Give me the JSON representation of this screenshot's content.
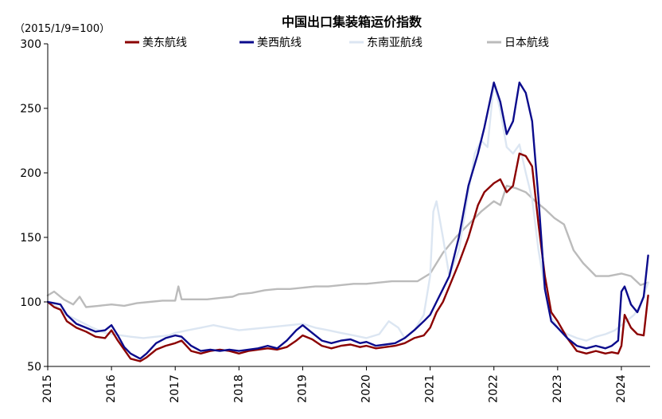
{
  "chart_data": {
    "type": "line",
    "title": "中国出口集装箱运价指数",
    "unit_label": "（2015/1/9=100）",
    "xlabel": "",
    "ylabel": "",
    "xlim": [
      2015,
      2024.45
    ],
    "ylim": [
      50,
      300
    ],
    "yticks": [
      50,
      100,
      150,
      200,
      250,
      300
    ],
    "xticks": [
      "2015",
      "2016",
      "2017",
      "2018",
      "2019",
      "2020",
      "2021",
      "2022",
      "2023",
      "2024"
    ],
    "legend_position": "top",
    "series": [
      {
        "name": "美东航线",
        "color": "#8B0000",
        "x": [
          2015.0,
          2015.1,
          2015.2,
          2015.3,
          2015.45,
          2015.6,
          2015.75,
          2015.9,
          2016.0,
          2016.1,
          2016.2,
          2016.3,
          2016.45,
          2016.55,
          2016.7,
          2016.85,
          2017.0,
          2017.1,
          2017.25,
          2017.4,
          2017.55,
          2017.7,
          2017.85,
          2018.0,
          2018.15,
          2018.3,
          2018.45,
          2018.6,
          2018.75,
          2018.9,
          2019.0,
          2019.15,
          2019.3,
          2019.45,
          2019.6,
          2019.75,
          2019.9,
          2020.0,
          2020.15,
          2020.3,
          2020.45,
          2020.6,
          2020.75,
          2020.9,
          2021.0,
          2021.1,
          2021.2,
          2021.3,
          2021.45,
          2021.6,
          2021.75,
          2021.85,
          2022.0,
          2022.1,
          2022.2,
          2022.3,
          2022.4,
          2022.5,
          2022.6,
          2022.7,
          2022.8,
          2022.9,
          2023.0,
          2023.15,
          2023.3,
          2023.45,
          2023.6,
          2023.75,
          2023.85,
          2023.95,
          2024.0,
          2024.05,
          2024.15,
          2024.25,
          2024.35,
          2024.42
        ],
        "values": [
          100,
          96,
          94,
          85,
          80,
          77,
          73,
          72,
          78,
          70,
          63,
          56,
          54,
          57,
          63,
          66,
          68,
          70,
          62,
          60,
          62,
          63,
          62,
          60,
          62,
          63,
          64,
          63,
          65,
          70,
          74,
          71,
          66,
          64,
          66,
          67,
          65,
          66,
          64,
          65,
          66,
          68,
          72,
          74,
          80,
          92,
          100,
          112,
          130,
          150,
          175,
          185,
          192,
          195,
          185,
          190,
          215,
          213,
          205,
          160,
          120,
          92,
          85,
          72,
          62,
          60,
          62,
          60,
          61,
          60,
          66,
          90,
          80,
          75,
          74,
          105
        ]
      },
      {
        "name": "美西航线",
        "color": "#0B0B8C",
        "x": [
          2015.0,
          2015.1,
          2015.2,
          2015.3,
          2015.45,
          2015.6,
          2015.75,
          2015.9,
          2016.0,
          2016.1,
          2016.2,
          2016.3,
          2016.45,
          2016.55,
          2016.7,
          2016.85,
          2017.0,
          2017.1,
          2017.25,
          2017.4,
          2017.55,
          2017.7,
          2017.85,
          2018.0,
          2018.15,
          2018.3,
          2018.45,
          2018.6,
          2018.75,
          2018.9,
          2019.0,
          2019.15,
          2019.3,
          2019.45,
          2019.6,
          2019.75,
          2019.9,
          2020.0,
          2020.15,
          2020.3,
          2020.45,
          2020.6,
          2020.75,
          2020.9,
          2021.0,
          2021.1,
          2021.2,
          2021.3,
          2021.45,
          2021.6,
          2021.75,
          2021.85,
          2022.0,
          2022.1,
          2022.2,
          2022.3,
          2022.4,
          2022.5,
          2022.6,
          2022.7,
          2022.8,
          2022.9,
          2023.0,
          2023.15,
          2023.3,
          2023.45,
          2023.6,
          2023.75,
          2023.85,
          2023.95,
          2024.0,
          2024.05,
          2024.15,
          2024.25,
          2024.35,
          2024.42
        ],
        "values": [
          100,
          99,
          98,
          90,
          83,
          80,
          77,
          78,
          82,
          74,
          65,
          60,
          56,
          60,
          68,
          72,
          74,
          73,
          66,
          62,
          63,
          62,
          63,
          62,
          63,
          64,
          66,
          64,
          70,
          78,
          82,
          76,
          70,
          68,
          70,
          71,
          68,
          69,
          66,
          67,
          68,
          72,
          78,
          85,
          90,
          100,
          110,
          120,
          150,
          190,
          215,
          235,
          270,
          255,
          230,
          240,
          270,
          262,
          240,
          180,
          110,
          85,
          80,
          72,
          66,
          64,
          66,
          64,
          66,
          70,
          108,
          112,
          98,
          92,
          104,
          136
        ]
      },
      {
        "name": "东南亚航线",
        "color": "#DCE6F2",
        "x": [
          2015.0,
          2015.15,
          2015.3,
          2015.5,
          2015.7,
          2015.9,
          2016.0,
          2016.15,
          2016.3,
          2016.5,
          2016.7,
          2016.9,
          2017.0,
          2017.2,
          2017.4,
          2017.6,
          2017.8,
          2018.0,
          2018.2,
          2018.4,
          2018.6,
          2018.8,
          2019.0,
          2019.2,
          2019.4,
          2019.6,
          2019.8,
          2020.0,
          2020.2,
          2020.35,
          2020.5,
          2020.6,
          2020.75,
          2020.9,
          2021.0,
          2021.05,
          2021.1,
          2021.2,
          2021.3,
          2021.45,
          2021.6,
          2021.7,
          2021.8,
          2021.9,
          2022.0,
          2022.1,
          2022.2,
          2022.3,
          2022.4,
          2022.5,
          2022.6,
          2022.7,
          2022.8,
          2022.9,
          2023.0,
          2023.15,
          2023.3,
          2023.45,
          2023.6,
          2023.75,
          2023.9,
          2024.0,
          2024.1,
          2024.2,
          2024.3,
          2024.42
        ],
        "values": [
          100,
          96,
          90,
          85,
          80,
          76,
          75,
          74,
          73,
          72,
          73,
          74,
          76,
          78,
          80,
          82,
          80,
          78,
          79,
          80,
          81,
          82,
          83,
          80,
          78,
          76,
          74,
          72,
          75,
          85,
          80,
          72,
          78,
          90,
          120,
          170,
          178,
          150,
          120,
          140,
          185,
          215,
          225,
          220,
          270,
          248,
          220,
          215,
          222,
          200,
          180,
          140,
          110,
          88,
          80,
          75,
          72,
          70,
          73,
          75,
          78,
          82,
          86,
          90,
          98,
          115
        ]
      },
      {
        "name": "日本航线",
        "color": "#BBBBBB",
        "x": [
          2015.0,
          2015.1,
          2015.25,
          2015.4,
          2015.5,
          2015.6,
          2015.8,
          2016.0,
          2016.2,
          2016.4,
          2016.6,
          2016.8,
          2017.0,
          2017.05,
          2017.1,
          2017.3,
          2017.5,
          2017.7,
          2017.9,
          2018.0,
          2018.2,
          2018.4,
          2018.6,
          2018.8,
          2019.0,
          2019.2,
          2019.4,
          2019.6,
          2019.8,
          2020.0,
          2020.2,
          2020.4,
          2020.6,
          2020.8,
          2021.0,
          2021.2,
          2021.4,
          2021.6,
          2021.8,
          2022.0,
          2022.1,
          2022.2,
          2022.35,
          2022.5,
          2022.65,
          2022.8,
          2022.95,
          2023.1,
          2023.25,
          2023.4,
          2023.6,
          2023.8,
          2024.0,
          2024.15,
          2024.3,
          2024.42
        ],
        "values": [
          105,
          108,
          102,
          98,
          104,
          96,
          97,
          98,
          97,
          99,
          100,
          101,
          101,
          112,
          102,
          102,
          102,
          103,
          104,
          106,
          107,
          109,
          110,
          110,
          111,
          112,
          112,
          113,
          114,
          114,
          115,
          116,
          116,
          116,
          122,
          138,
          150,
          160,
          170,
          178,
          175,
          190,
          188,
          185,
          178,
          172,
          165,
          160,
          140,
          130,
          120,
          120,
          122,
          120,
          113,
          115
        ]
      }
    ]
  }
}
